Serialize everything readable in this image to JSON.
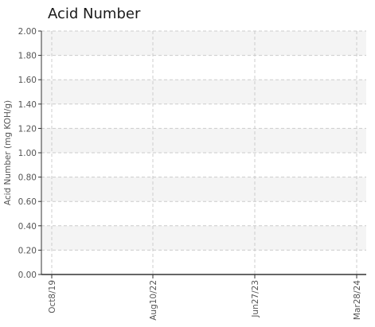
{
  "chart_data": {
    "type": "line",
    "title": "Acid Number",
    "xlabel": "",
    "ylabel": "Acid Number (mg KOH/g)",
    "ylim": [
      0,
      2
    ],
    "y_ticks": [
      "0.00",
      "0.20",
      "0.40",
      "0.60",
      "0.80",
      "1.00",
      "1.20",
      "1.40",
      "1.60",
      "1.80",
      "2.00"
    ],
    "x_ticks": [
      "Oct8/19",
      "Aug10/22",
      "Jun27/23",
      "Mar28/24"
    ],
    "grid": true,
    "series": [],
    "colors": {
      "band": "#f4f4f4",
      "grid": "#cccccc",
      "axis": "#333333",
      "text": "#555555"
    }
  }
}
